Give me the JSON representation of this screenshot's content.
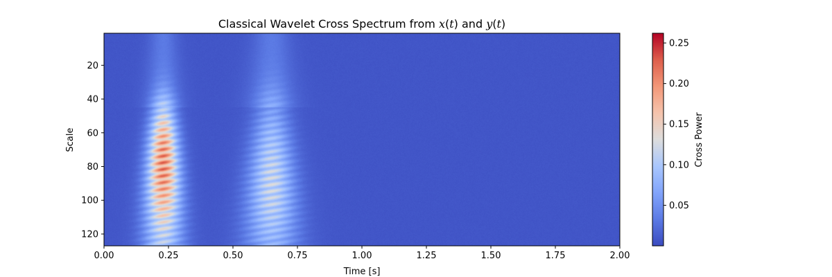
{
  "chart_data": {
    "type": "heatmap",
    "title": "Classical Wavelet Cross Spectrum from x(t) and y(t)",
    "title_parts": [
      "Classical Wavelet Cross Spectrum from ",
      "x",
      "(",
      "t",
      ") and ",
      "y",
      "(",
      "t",
      ")"
    ],
    "xlabel": "Time [s]",
    "ylabel": "Scale",
    "xlim": [
      0.0,
      2.0
    ],
    "ylim": [
      127,
      1
    ],
    "x_ticks": [
      0.0,
      0.25,
      0.5,
      0.75,
      1.0,
      1.25,
      1.5,
      1.75,
      2.0
    ],
    "x_tick_labels": [
      "0.00",
      "0.25",
      "0.50",
      "0.75",
      "1.00",
      "1.25",
      "1.50",
      "1.75",
      "2.00"
    ],
    "y_ticks": [
      20,
      40,
      60,
      80,
      100,
      120
    ],
    "y_tick_labels": [
      "20",
      "40",
      "60",
      "80",
      "100",
      "120"
    ],
    "y_inverted": true,
    "colormap": "coolwarm",
    "colorbar": {
      "label": "Cross Power",
      "vmin": 0.0,
      "vmax": 0.262,
      "ticks": [
        0.05,
        0.1,
        0.15,
        0.2,
        0.25
      ],
      "tick_labels": [
        "0.05",
        "0.10",
        "0.15",
        "0.20",
        "0.25"
      ]
    },
    "blobs": [
      {
        "t_center": 0.23,
        "scale_center": 78,
        "peak_power": 0.22,
        "t_halfwidth": 0.045,
        "scale_start": 40
      },
      {
        "t_center": 0.65,
        "scale_center": 90,
        "peak_power": 0.12,
        "t_halfwidth": 0.06,
        "scale_start": 35
      }
    ],
    "background_power": 0.005
  }
}
